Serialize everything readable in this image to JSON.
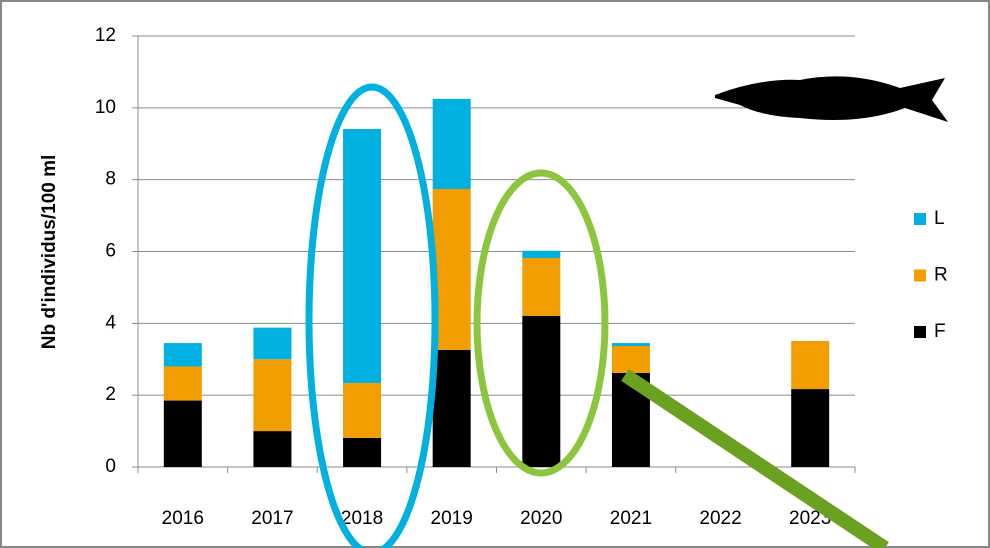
{
  "chart_data": {
    "type": "bar",
    "stacked": true,
    "y_axis_label": "Nb d'individus/100 ml",
    "categories": [
      "2016",
      "2017",
      "2018",
      "2019",
      "2020",
      "2021",
      "2022",
      "2023"
    ],
    "series": [
      {
        "name": "F",
        "color": "#000000",
        "values": [
          1.85,
          1.0,
          0.81,
          3.26,
          4.21,
          2.62,
          0,
          2.17
        ]
      },
      {
        "name": "R",
        "color": "#f29d00",
        "values": [
          0.95,
          2.0,
          1.53,
          4.48,
          1.61,
          0.75,
          0,
          1.34
        ]
      },
      {
        "name": "L",
        "color": "#00b0e0",
        "values": [
          0.65,
          0.88,
          7.07,
          2.51,
          0.2,
          0.08,
          0,
          0
        ]
      }
    ],
    "ylim": [
      0,
      12
    ],
    "yticks": [
      0,
      2,
      4,
      6,
      8,
      10,
      12
    ],
    "grid": true,
    "legend": "right"
  }
}
